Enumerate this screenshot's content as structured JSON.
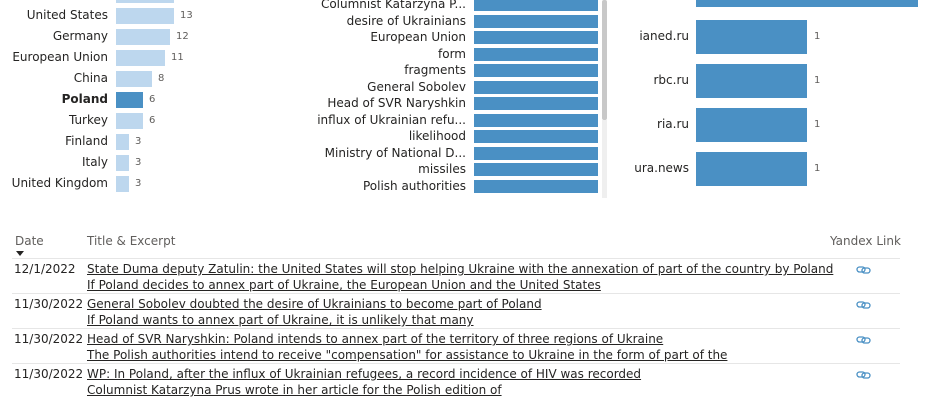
{
  "countries": [
    {
      "label": "United States",
      "value": 13,
      "bold": false,
      "selected": false
    },
    {
      "label": "Germany",
      "value": 12,
      "bold": false,
      "selected": false
    },
    {
      "label": "European Union",
      "value": 11,
      "bold": false,
      "selected": false
    },
    {
      "label": "China",
      "value": 8,
      "bold": false,
      "selected": false
    },
    {
      "label": "Poland",
      "value": 6,
      "bold": true,
      "selected": true
    },
    {
      "label": "Turkey",
      "value": 6,
      "bold": false,
      "selected": false
    },
    {
      "label": "Finland",
      "value": 3,
      "bold": false,
      "selected": false
    },
    {
      "label": "Italy",
      "value": 3,
      "bold": false,
      "selected": false
    },
    {
      "label": "United Kingdom",
      "value": 3,
      "bold": false,
      "selected": false
    }
  ],
  "topics": [
    "Columnist Katarzyna P...",
    "desire of Ukrainians",
    "European Union",
    "form",
    "fragments",
    "General Sobolev",
    "Head of SVR Naryshkin",
    "influx of Ukrainian refu...",
    "likelihood",
    "Ministry of National D...",
    "missiles",
    "Polish authorities"
  ],
  "sources": [
    {
      "label": "ianed.ru",
      "value": 1
    },
    {
      "label": "rbc.ru",
      "value": 1
    },
    {
      "label": "ria.ru",
      "value": 1
    },
    {
      "label": "ura.news",
      "value": 1
    }
  ],
  "table": {
    "headers": {
      "date": "Date",
      "title": "Title & Excerpt",
      "link": "Yandex Link"
    },
    "rows": [
      {
        "date": "12/1/2022",
        "title": "State Duma deputy Zatulin: the United States will stop helping Ukraine with the annexation of part of the country by Poland",
        "excerpt": "If Poland decides to annex part of Ukraine, the European Union and the United States"
      },
      {
        "date": "11/30/2022",
        "title": "General Sobolev doubted the desire of Ukrainians to become part of Poland",
        "excerpt": "If Poland wants to annex part of Ukraine, it is unlikely that many"
      },
      {
        "date": "11/30/2022",
        "title": "Head of SVR Naryshkin: Poland intends to annex part of the territory of three regions of Ukraine",
        "excerpt": "The Polish authorities intend to receive \"compensation\" for assistance to Ukraine in the form of part of the"
      },
      {
        "date": "11/30/2022",
        "title": "WP: In Poland, after the influx of Ukrainian refugees, a record incidence of HIV was recorded",
        "excerpt": "Columnist Katarzyna Prus wrote in her article for the Polish edition of"
      }
    ]
  },
  "colors": {
    "bar_light": "#bdd7ee",
    "bar_selected": "#4a90c4",
    "bar": "#4a90c4"
  }
}
